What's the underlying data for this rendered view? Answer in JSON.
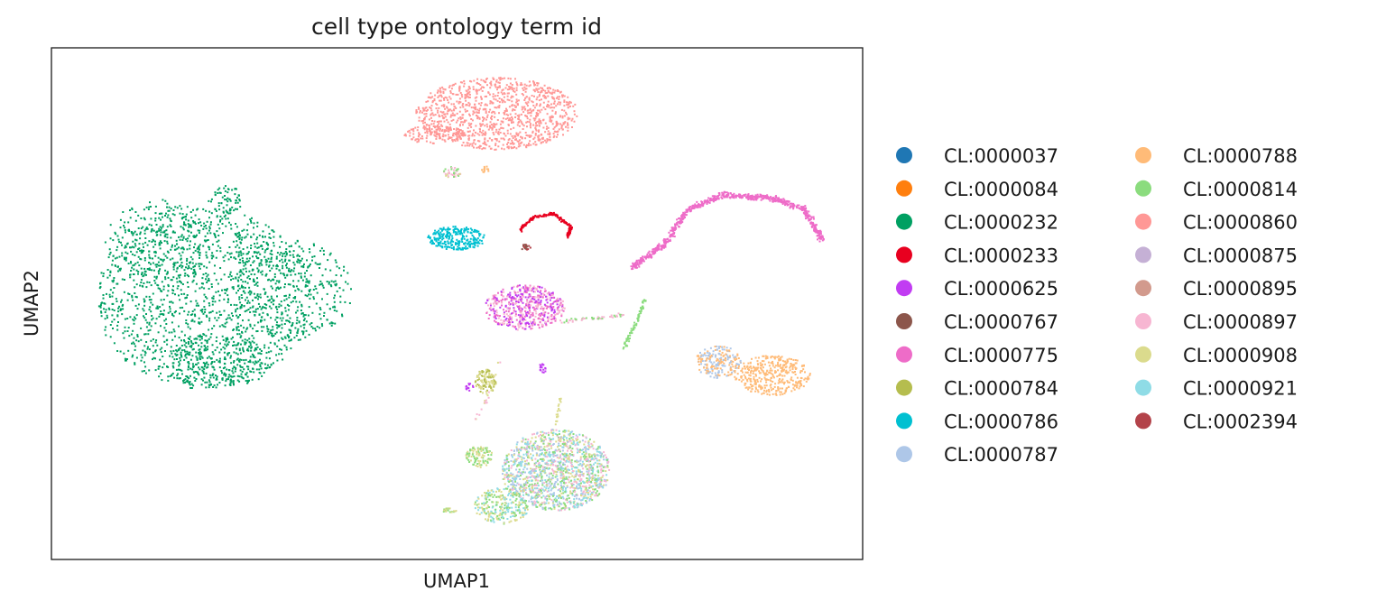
{
  "chart_data": {
    "type": "scatter",
    "title": "cell type ontology term id",
    "xlabel": "UMAP1",
    "ylabel": "UMAP2",
    "legend_position": "right, two columns",
    "grid": false,
    "ticks_shown": false,
    "categories": [
      {
        "name": "CL:0000037",
        "color": "#1f77b4"
      },
      {
        "name": "CL:0000084",
        "color": "#ff7f0e"
      },
      {
        "name": "CL:0000232",
        "color": "#00a062"
      },
      {
        "name": "CL:0000233",
        "color": "#e8001f"
      },
      {
        "name": "CL:0000625",
        "color": "#c13cf2"
      },
      {
        "name": "CL:0000767",
        "color": "#8c564b"
      },
      {
        "name": "CL:0000775",
        "color": "#ee6cc8"
      },
      {
        "name": "CL:0000784",
        "color": "#b5bd4e"
      },
      {
        "name": "CL:0000786",
        "color": "#00c0d1"
      },
      {
        "name": "CL:0000787",
        "color": "#aec7e8"
      },
      {
        "name": "CL:0000788",
        "color": "#ffbb78"
      },
      {
        "name": "CL:0000814",
        "color": "#8bdc7e"
      },
      {
        "name": "CL:0000860",
        "color": "#ff9896"
      },
      {
        "name": "CL:0000875",
        "color": "#c5b0d5"
      },
      {
        "name": "CL:0000895",
        "color": "#d29a8d"
      },
      {
        "name": "CL:0000897",
        "color": "#f7b6d2"
      },
      {
        "name": "CL:0000908",
        "color": "#dbdb8d"
      },
      {
        "name": "CL:0000921",
        "color": "#8fdce6"
      },
      {
        "name": "CL:0002394",
        "color": "#b3434a"
      }
    ]
  }
}
